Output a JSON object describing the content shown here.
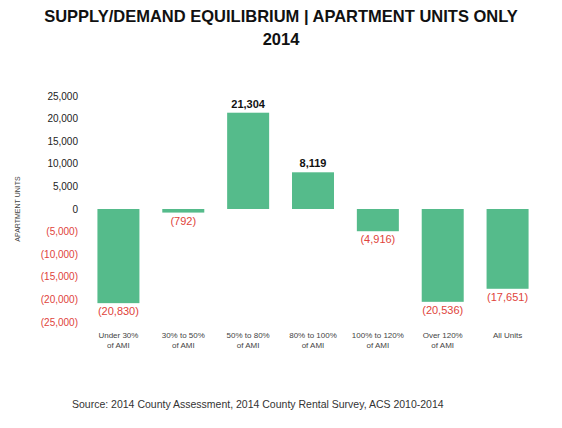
{
  "chart_data": {
    "type": "bar",
    "title": "SUPPLY/DEMAND EQUILIBRIUM | APARTMENT UNITS ONLY",
    "subtitle": "2014",
    "y_label": "APARTMENT UNITS",
    "source": "Source: 2014 County Assessment, 2014 County Rental Survey, ACS 2010-2014",
    "categories": [
      "Under 30% of AMI",
      "30% to 50% of AMI",
      "50% to 80% of AMI",
      "80% to 100% of AMI",
      "100% to 120% of AMI",
      "Over 120% of AMI",
      "All Units"
    ],
    "values": [
      -20830,
      -792,
      21304,
      8119,
      -4916,
      -20536,
      -17651
    ],
    "value_labels": [
      "(20,830)",
      "(792)",
      "21,304",
      "8,119",
      "(4,916)",
      "(20,536)",
      "(17,651)"
    ],
    "color": "#55bb8b",
    "data_labels": true,
    "grid": false,
    "ylim": [
      -25000,
      25000
    ],
    "yticks": [
      {
        "value": 25000,
        "label": "25,000"
      },
      {
        "value": 20000,
        "label": "20,000"
      },
      {
        "value": 15000,
        "label": "15,000"
      },
      {
        "value": 10000,
        "label": "10,000"
      },
      {
        "value": 5000,
        "label": "5,000"
      },
      0,
      {
        "value": -5000,
        "label": "(5,000)"
      },
      {
        "value": -10000,
        "label": "(10,000)"
      },
      {
        "value": -15000,
        "label": "(15,000)"
      },
      {
        "value": -20000,
        "label": "(20,000)"
      },
      {
        "value": -25000,
        "label": "(25,000)"
      }
    ]
  }
}
